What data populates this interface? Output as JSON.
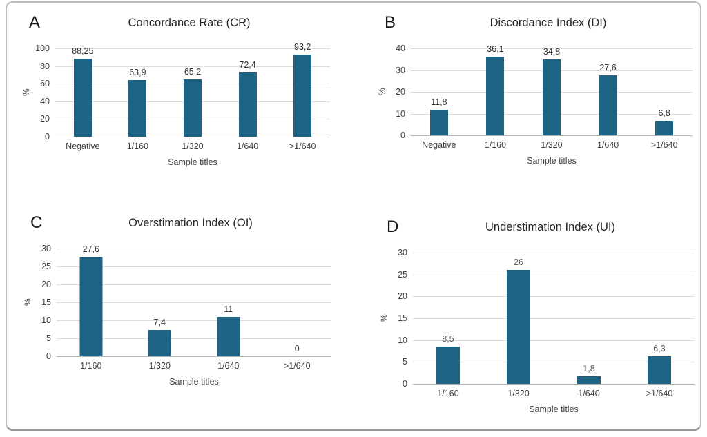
{
  "colors": {
    "bar": "#1F6384",
    "grid": "#DCDCDC",
    "baseline": "#B5B5B5"
  },
  "chart_data": [
    {
      "type": "bar",
      "letter": "A",
      "title": "Concordance Rate (CR)",
      "ylabel": "%",
      "xlabel": "Sample titles",
      "ylim": [
        0,
        100
      ],
      "ytick_step": 20,
      "grid": true,
      "legend": false,
      "categories": [
        "Negative",
        "1/160",
        "1/320",
        "1/640",
        ">1/640"
      ],
      "values": [
        88.25,
        63.9,
        65.2,
        72.4,
        93.2
      ],
      "value_labels": [
        "88,25",
        "63,9",
        "65,2",
        "72,4",
        "93,2"
      ],
      "label_color": "#333333"
    },
    {
      "type": "bar",
      "letter": "B",
      "title": "Discordance Index (DI)",
      "ylabel": "%",
      "xlabel": "Sample titles",
      "ylim": [
        0,
        40
      ],
      "ytick_step": 10,
      "grid": true,
      "legend": false,
      "categories": [
        "Negative",
        "1/160",
        "1/320",
        "1/640",
        ">1/640"
      ],
      "values": [
        11.8,
        36.1,
        34.8,
        27.6,
        6.8
      ],
      "value_labels": [
        "11,8",
        "36,1",
        "34,8",
        "27,6",
        "6,8"
      ],
      "label_color": "#333333"
    },
    {
      "type": "bar",
      "letter": "C",
      "title": "Overstimation Index (OI)",
      "ylabel": "%",
      "xlabel": "Sample titles",
      "ylim": [
        0,
        30
      ],
      "ytick_step": 5,
      "grid": true,
      "legend": false,
      "categories": [
        "1/160",
        "1/320",
        "1/640",
        ">1/640"
      ],
      "values": [
        27.6,
        7.4,
        11,
        0
      ],
      "value_labels": [
        "27,6",
        "7,4",
        "11",
        "0"
      ],
      "label_color": "#333333"
    },
    {
      "type": "bar",
      "letter": "D",
      "title": "Understimation Index (UI)",
      "ylabel": "%",
      "xlabel": "Sample titles",
      "ylim": [
        0,
        30
      ],
      "ytick_step": 5,
      "grid": true,
      "legend": false,
      "categories": [
        "1/160",
        "1/320",
        "1/640",
        ">1/640"
      ],
      "values": [
        8.5,
        26,
        1.8,
        6.3
      ],
      "value_labels": [
        "8,5",
        "26",
        "1,8",
        "6,3"
      ],
      "label_color": "#595959"
    }
  ]
}
